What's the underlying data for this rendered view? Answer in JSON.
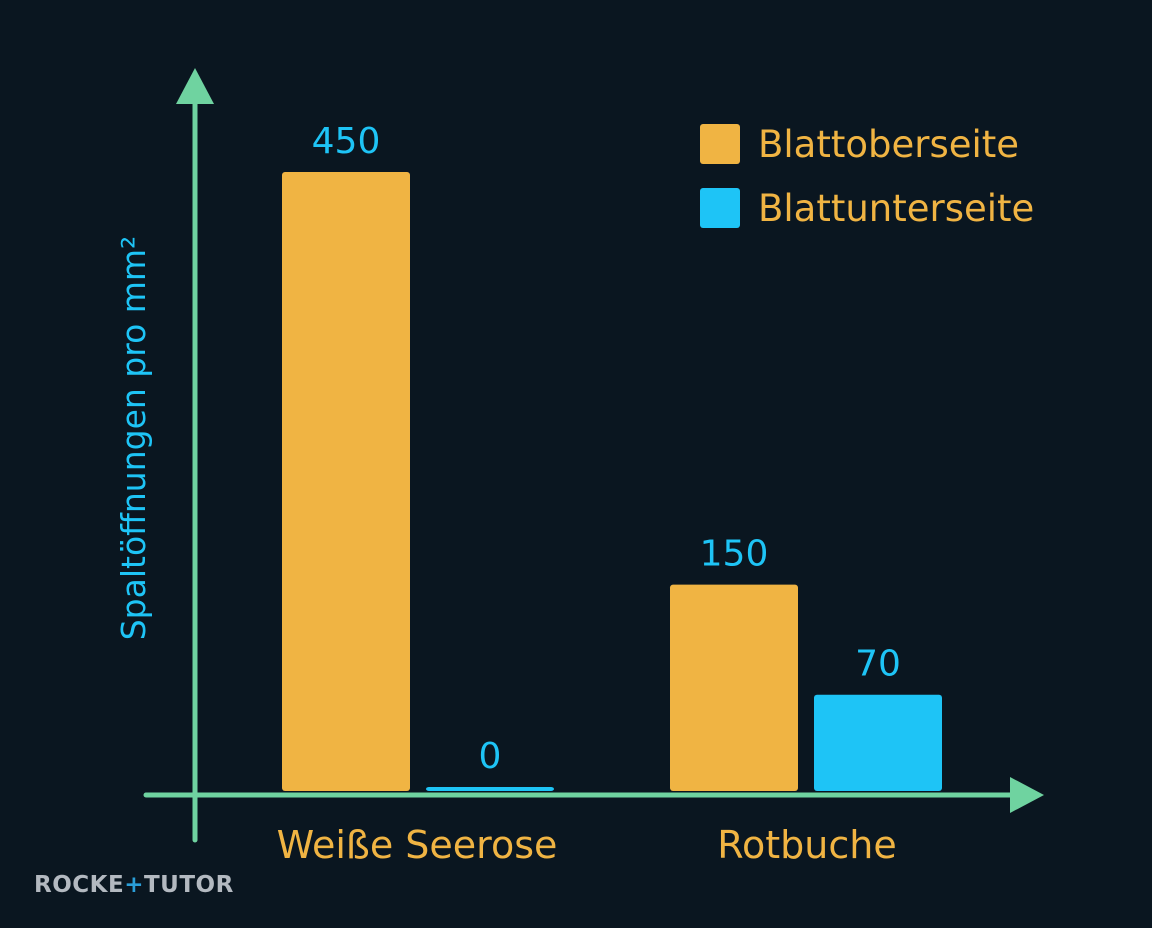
{
  "colors": {
    "background": "#0a1620",
    "axis": "#6fd3a0",
    "series_top": "#f0b443",
    "series_bottom": "#1ec4f6",
    "ylabel": "#1ec4f6",
    "category_text": "#f0b443",
    "value_text": "#1ec4f6",
    "legend_text": "#f0b443",
    "brand_gray": "#b3b9c0",
    "brand_accent": "#2a9ed8"
  },
  "chart_data": {
    "type": "bar",
    "title": "",
    "xlabel": "",
    "ylabel": "Spaltöffnungen pro mm²",
    "categories": [
      "Weiße Seerose",
      "Rotbuche"
    ],
    "series": [
      {
        "name": "Blattoberseite",
        "values": [
          450,
          150
        ]
      },
      {
        "name": "Blattunterseite",
        "values": [
          0,
          70
        ]
      }
    ],
    "ylim": [
      0,
      450
    ],
    "grid": false,
    "legend_position": "top-right",
    "data_labels": true
  },
  "brand": {
    "part1": "ROCKE",
    "accent": "+",
    "part2": "TUTO",
    "accent2": "R"
  }
}
